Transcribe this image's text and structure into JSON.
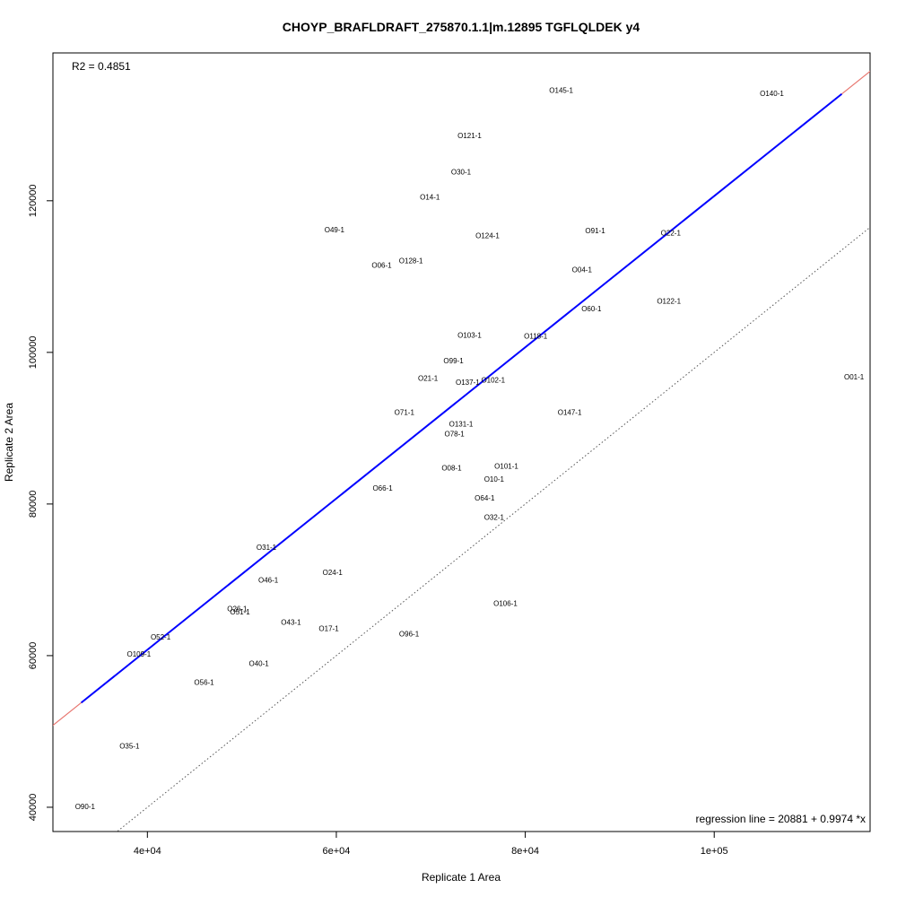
{
  "chart_data": {
    "type": "scatter",
    "title": "CHOYP_BRAFLDRAFT_275870.1.1|m.12895 TGFLQLDEK y4",
    "xlabel": "Replicate 1 Area",
    "ylabel": "Replicate 2 Area",
    "xlim": [
      30000,
      116500
    ],
    "ylim": [
      36800,
      139500
    ],
    "x_ticks": [
      40000,
      60000,
      80000,
      100000
    ],
    "x_tick_labels": [
      "4e+04",
      "6e+04",
      "8e+04",
      "1e+05"
    ],
    "y_ticks": [
      40000,
      60000,
      80000,
      100000,
      120000
    ],
    "y_tick_labels": [
      "40000",
      "60000",
      "80000",
      "100000",
      "120000"
    ],
    "r2_text": "R2 = 0.4851",
    "regression_text": "regression line = 20881 + 0.9974 *x",
    "regression": {
      "intercept": 20881,
      "slope": 0.9974,
      "color": "#e8766f"
    },
    "fit_segment": {
      "x": [
        33000,
        113500
      ],
      "color": "#0000ff"
    },
    "identity_line": {
      "intercept": 0,
      "slope": 1,
      "style": "dotted",
      "color": "#555555"
    },
    "points": [
      {
        "label": "O145-1",
        "x": 83800,
        "y": 134600
      },
      {
        "label": "O140-1",
        "x": 106100,
        "y": 134200
      },
      {
        "label": "O121-1",
        "x": 74100,
        "y": 128600
      },
      {
        "label": "O30-1",
        "x": 73200,
        "y": 123800
      },
      {
        "label": "O14-1",
        "x": 69900,
        "y": 120500
      },
      {
        "label": "O49-1",
        "x": 59800,
        "y": 116200
      },
      {
        "label": "O124-1",
        "x": 76000,
        "y": 115400
      },
      {
        "label": "O91-1",
        "x": 87400,
        "y": 116100
      },
      {
        "label": "O22-1",
        "x": 95400,
        "y": 115800
      },
      {
        "label": "O128-1",
        "x": 67900,
        "y": 112100
      },
      {
        "label": "O06-1",
        "x": 64800,
        "y": 111500
      },
      {
        "label": "O04-1",
        "x": 86000,
        "y": 110900
      },
      {
        "label": "O122-1",
        "x": 95200,
        "y": 106800
      },
      {
        "label": "O60-1",
        "x": 87000,
        "y": 105800
      },
      {
        "label": "O103-1",
        "x": 74100,
        "y": 102300
      },
      {
        "label": "O118-1",
        "x": 81100,
        "y": 102200
      },
      {
        "label": "O99-1",
        "x": 72400,
        "y": 98900
      },
      {
        "label": "O21-1",
        "x": 69700,
        "y": 96600
      },
      {
        "label": "O137-1",
        "x": 73900,
        "y": 96100
      },
      {
        "label": "O102-1",
        "x": 76600,
        "y": 96400
      },
      {
        "label": "O01-1",
        "x": 114800,
        "y": 96800
      },
      {
        "label": "O71-1",
        "x": 67200,
        "y": 92100
      },
      {
        "label": "O147-1",
        "x": 84700,
        "y": 92100
      },
      {
        "label": "O131-1",
        "x": 73200,
        "y": 90600
      },
      {
        "label": "O78-1",
        "x": 72500,
        "y": 89300
      },
      {
        "label": "O08-1",
        "x": 72200,
        "y": 84800
      },
      {
        "label": "O101-1",
        "x": 78000,
        "y": 85000
      },
      {
        "label": "O10-1",
        "x": 76700,
        "y": 83300
      },
      {
        "label": "O66-1",
        "x": 64900,
        "y": 82100
      },
      {
        "label": "O64-1",
        "x": 75700,
        "y": 80800
      },
      {
        "label": "O32-1",
        "x": 76700,
        "y": 78300
      },
      {
        "label": "O31-1",
        "x": 52600,
        "y": 74300
      },
      {
        "label": "O24-1",
        "x": 59600,
        "y": 71000
      },
      {
        "label": "O46-1",
        "x": 52800,
        "y": 70000
      },
      {
        "label": "O106-1",
        "x": 77900,
        "y": 66900
      },
      {
        "label": "O26-1",
        "x": 49500,
        "y": 66200
      },
      {
        "label": "O51-1",
        "x": 49800,
        "y": 65800
      },
      {
        "label": "O43-1",
        "x": 55200,
        "y": 64400
      },
      {
        "label": "O17-1",
        "x": 59200,
        "y": 63600
      },
      {
        "label": "O96-1",
        "x": 67700,
        "y": 62900
      },
      {
        "label": "O52-1",
        "x": 41400,
        "y": 62500
      },
      {
        "label": "O109-1",
        "x": 39100,
        "y": 60200
      },
      {
        "label": "O40-1",
        "x": 51800,
        "y": 59000
      },
      {
        "label": "O56-1",
        "x": 46000,
        "y": 56500
      },
      {
        "label": "O35-1",
        "x": 38100,
        "y": 48100
      },
      {
        "label": "O90-1",
        "x": 33400,
        "y": 40100
      }
    ]
  }
}
